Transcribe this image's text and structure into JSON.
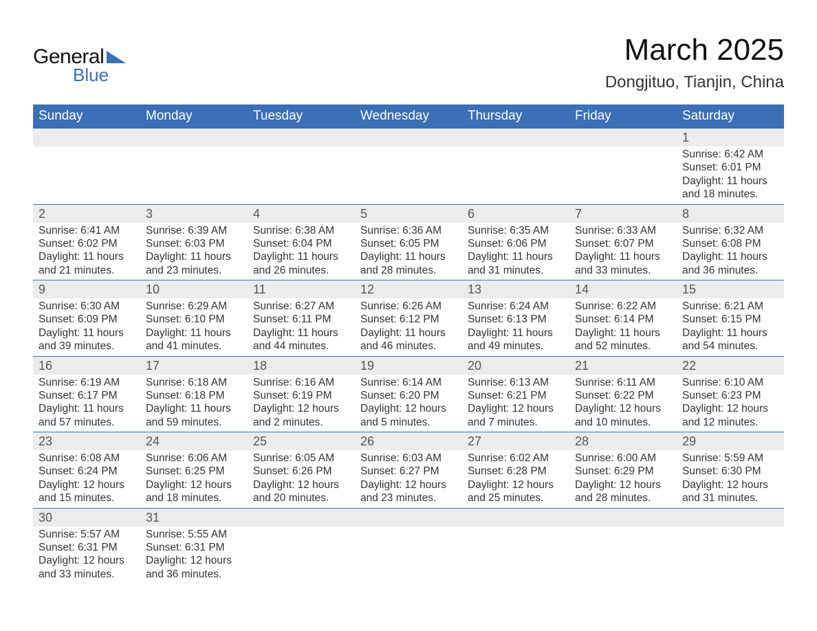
{
  "brand": {
    "general": "General",
    "blue": "Blue",
    "tri_color": "#3b6fb6"
  },
  "title": "March 2025",
  "location": "Dongjituo, Tianjin, China",
  "colors": {
    "header_bg": "#3b6fb6",
    "header_text": "#ffffff",
    "daynum_bg": "#ececec",
    "row_border": "#3b6fb6",
    "text": "#333333",
    "background": "#ffffff"
  },
  "weekdays": [
    "Sunday",
    "Monday",
    "Tuesday",
    "Wednesday",
    "Thursday",
    "Friday",
    "Saturday"
  ],
  "weeks": [
    [
      null,
      null,
      null,
      null,
      null,
      null,
      {
        "n": "1",
        "sr": "Sunrise: 6:42 AM",
        "ss": "Sunset: 6:01 PM",
        "dl": "Daylight: 11 hours and 18 minutes."
      }
    ],
    [
      {
        "n": "2",
        "sr": "Sunrise: 6:41 AM",
        "ss": "Sunset: 6:02 PM",
        "dl": "Daylight: 11 hours and 21 minutes."
      },
      {
        "n": "3",
        "sr": "Sunrise: 6:39 AM",
        "ss": "Sunset: 6:03 PM",
        "dl": "Daylight: 11 hours and 23 minutes."
      },
      {
        "n": "4",
        "sr": "Sunrise: 6:38 AM",
        "ss": "Sunset: 6:04 PM",
        "dl": "Daylight: 11 hours and 26 minutes."
      },
      {
        "n": "5",
        "sr": "Sunrise: 6:36 AM",
        "ss": "Sunset: 6:05 PM",
        "dl": "Daylight: 11 hours and 28 minutes."
      },
      {
        "n": "6",
        "sr": "Sunrise: 6:35 AM",
        "ss": "Sunset: 6:06 PM",
        "dl": "Daylight: 11 hours and 31 minutes."
      },
      {
        "n": "7",
        "sr": "Sunrise: 6:33 AM",
        "ss": "Sunset: 6:07 PM",
        "dl": "Daylight: 11 hours and 33 minutes."
      },
      {
        "n": "8",
        "sr": "Sunrise: 6:32 AM",
        "ss": "Sunset: 6:08 PM",
        "dl": "Daylight: 11 hours and 36 minutes."
      }
    ],
    [
      {
        "n": "9",
        "sr": "Sunrise: 6:30 AM",
        "ss": "Sunset: 6:09 PM",
        "dl": "Daylight: 11 hours and 39 minutes."
      },
      {
        "n": "10",
        "sr": "Sunrise: 6:29 AM",
        "ss": "Sunset: 6:10 PM",
        "dl": "Daylight: 11 hours and 41 minutes."
      },
      {
        "n": "11",
        "sr": "Sunrise: 6:27 AM",
        "ss": "Sunset: 6:11 PM",
        "dl": "Daylight: 11 hours and 44 minutes."
      },
      {
        "n": "12",
        "sr": "Sunrise: 6:26 AM",
        "ss": "Sunset: 6:12 PM",
        "dl": "Daylight: 11 hours and 46 minutes."
      },
      {
        "n": "13",
        "sr": "Sunrise: 6:24 AM",
        "ss": "Sunset: 6:13 PM",
        "dl": "Daylight: 11 hours and 49 minutes."
      },
      {
        "n": "14",
        "sr": "Sunrise: 6:22 AM",
        "ss": "Sunset: 6:14 PM",
        "dl": "Daylight: 11 hours and 52 minutes."
      },
      {
        "n": "15",
        "sr": "Sunrise: 6:21 AM",
        "ss": "Sunset: 6:15 PM",
        "dl": "Daylight: 11 hours and 54 minutes."
      }
    ],
    [
      {
        "n": "16",
        "sr": "Sunrise: 6:19 AM",
        "ss": "Sunset: 6:17 PM",
        "dl": "Daylight: 11 hours and 57 minutes."
      },
      {
        "n": "17",
        "sr": "Sunrise: 6:18 AM",
        "ss": "Sunset: 6:18 PM",
        "dl": "Daylight: 11 hours and 59 minutes."
      },
      {
        "n": "18",
        "sr": "Sunrise: 6:16 AM",
        "ss": "Sunset: 6:19 PM",
        "dl": "Daylight: 12 hours and 2 minutes."
      },
      {
        "n": "19",
        "sr": "Sunrise: 6:14 AM",
        "ss": "Sunset: 6:20 PM",
        "dl": "Daylight: 12 hours and 5 minutes."
      },
      {
        "n": "20",
        "sr": "Sunrise: 6:13 AM",
        "ss": "Sunset: 6:21 PM",
        "dl": "Daylight: 12 hours and 7 minutes."
      },
      {
        "n": "21",
        "sr": "Sunrise: 6:11 AM",
        "ss": "Sunset: 6:22 PM",
        "dl": "Daylight: 12 hours and 10 minutes."
      },
      {
        "n": "22",
        "sr": "Sunrise: 6:10 AM",
        "ss": "Sunset: 6:23 PM",
        "dl": "Daylight: 12 hours and 12 minutes."
      }
    ],
    [
      {
        "n": "23",
        "sr": "Sunrise: 6:08 AM",
        "ss": "Sunset: 6:24 PM",
        "dl": "Daylight: 12 hours and 15 minutes."
      },
      {
        "n": "24",
        "sr": "Sunrise: 6:06 AM",
        "ss": "Sunset: 6:25 PM",
        "dl": "Daylight: 12 hours and 18 minutes."
      },
      {
        "n": "25",
        "sr": "Sunrise: 6:05 AM",
        "ss": "Sunset: 6:26 PM",
        "dl": "Daylight: 12 hours and 20 minutes."
      },
      {
        "n": "26",
        "sr": "Sunrise: 6:03 AM",
        "ss": "Sunset: 6:27 PM",
        "dl": "Daylight: 12 hours and 23 minutes."
      },
      {
        "n": "27",
        "sr": "Sunrise: 6:02 AM",
        "ss": "Sunset: 6:28 PM",
        "dl": "Daylight: 12 hours and 25 minutes."
      },
      {
        "n": "28",
        "sr": "Sunrise: 6:00 AM",
        "ss": "Sunset: 6:29 PM",
        "dl": "Daylight: 12 hours and 28 minutes."
      },
      {
        "n": "29",
        "sr": "Sunrise: 5:59 AM",
        "ss": "Sunset: 6:30 PM",
        "dl": "Daylight: 12 hours and 31 minutes."
      }
    ],
    [
      {
        "n": "30",
        "sr": "Sunrise: 5:57 AM",
        "ss": "Sunset: 6:31 PM",
        "dl": "Daylight: 12 hours and 33 minutes."
      },
      {
        "n": "31",
        "sr": "Sunrise: 5:55 AM",
        "ss": "Sunset: 6:31 PM",
        "dl": "Daylight: 12 hours and 36 minutes."
      },
      null,
      null,
      null,
      null,
      null
    ]
  ]
}
